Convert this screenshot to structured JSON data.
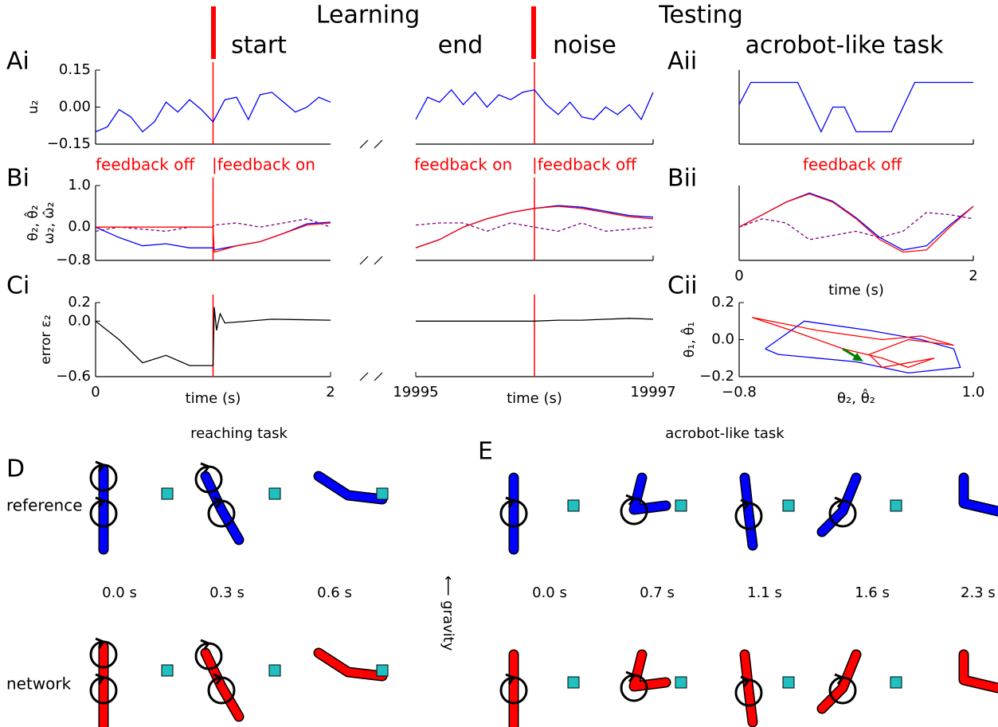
{
  "figure": {
    "headings": [
      "Learning",
      "Testing"
    ],
    "phases": [
      "start",
      "end",
      "noise",
      "acrobot-like task"
    ],
    "panels": [
      "Ai",
      "Aii",
      "Bi",
      "Bii",
      "Ci",
      "Cii",
      "D",
      "E"
    ],
    "feedback": [
      "feedback off",
      "|feedback on",
      "feedback on",
      "|feedback off",
      "feedback off"
    ],
    "reaching_title": "reaching task",
    "acrobot_title": "acrobot-like task",
    "rows": [
      "reference",
      "network"
    ],
    "reaching_times": [
      "0.0 s",
      "0.3 s",
      "0.6 s"
    ],
    "acrobot_times": [
      "0.0 s",
      "0.7 s",
      "1.1 s",
      "1.6 s",
      "2.3 s"
    ],
    "gravity": "⟵ gravity"
  },
  "chart_data": [
    {
      "type": "line",
      "ylabel": [
        "u₂"
      ],
      "xlim": [
        0,
        2
      ],
      "ylim": [
        -0.15,
        0.15
      ],
      "yticks": [
        0.15,
        {
          "value": 0,
          "label": "0.00"
        },
        {
          "value": -0.15,
          "label": "−0.15"
        }
      ],
      "vlines": [
        1
      ],
      "x": [
        0,
        0.1,
        0.2,
        0.3,
        0.4,
        0.5,
        0.6,
        0.7,
        0.8,
        0.9,
        1.0,
        1.1,
        1.2,
        1.3,
        1.4,
        1.5,
        1.6,
        1.7,
        1.8,
        1.9,
        2.0
      ],
      "series": [
        {
          "color": "#0000ff",
          "values": [
            -0.1,
            -0.08,
            -0.01,
            -0.04,
            -0.1,
            -0.06,
            0.02,
            -0.02,
            0.03,
            -0.01,
            -0.06,
            0.03,
            0.04,
            -0.05,
            0.05,
            0.06,
            0.02,
            -0.02,
            0.0,
            0.04,
            0.02
          ]
        }
      ]
    },
    {
      "type": "line",
      "xlim": [
        19995,
        19997
      ],
      "ylim": [
        -0.15,
        0.15
      ],
      "vlines": [
        19996
      ],
      "x": [
        19995,
        19995.1,
        19995.2,
        19995.3,
        19995.4,
        19995.5,
        19995.6,
        19995.7,
        19995.8,
        19995.9,
        19996,
        19996.1,
        19996.2,
        19996.3,
        19996.4,
        19996.5,
        19996.6,
        19996.7,
        19996.8,
        19996.9,
        19997
      ],
      "series": [
        {
          "color": "#0000ff",
          "values": [
            -0.05,
            0.04,
            0.02,
            0.07,
            0.01,
            0.06,
            0.0,
            0.05,
            0.03,
            0.06,
            0.07,
            0.01,
            -0.03,
            0.02,
            -0.04,
            -0.05,
            0.0,
            -0.03,
            0.01,
            -0.05,
            0.06
          ]
        }
      ]
    },
    {
      "type": "line",
      "xlim": [
        0,
        2
      ],
      "ylim": [
        -0.15,
        0.15
      ],
      "x": [
        0,
        0.1,
        0.5,
        0.7,
        0.8,
        0.9,
        1.0,
        1.3,
        1.5,
        2.0
      ],
      "series": [
        {
          "color": "#0000ff",
          "values": [
            0.01,
            0.1,
            0.1,
            -0.1,
            0,
            0,
            -0.1,
            -0.1,
            0.1,
            0.1
          ]
        }
      ]
    },
    {
      "type": "line",
      "ylabel": [
        "θ₂, θ̂₂",
        "ω₂, ω̂₂"
      ],
      "xlim": [
        0,
        2
      ],
      "ylim": [
        -0.8,
        1.0
      ],
      "yticks": [
        {
          "value": 1.0,
          "label": "1.0"
        },
        {
          "value": 0,
          "label": "0.0"
        },
        {
          "value": -0.8,
          "label": "−0.8"
        }
      ],
      "vlines": [
        1
      ],
      "x": [
        0,
        0.2,
        0.4,
        0.6,
        0.8,
        1.0,
        1.01,
        1.2,
        1.4,
        1.6,
        1.8,
        2.0
      ],
      "series": [
        {
          "color": "#800080",
          "style": "dashed",
          "values": [
            -0.1,
            0,
            -0.05,
            -0.1,
            0,
            0,
            0.05,
            0.1,
            0,
            0.1,
            0.2,
            0.0
          ]
        },
        {
          "color": "#0000ff",
          "values": [
            0,
            -0.25,
            -0.45,
            -0.4,
            -0.5,
            -0.5,
            -0.55,
            -0.45,
            -0.35,
            -0.15,
            0.08,
            0.12
          ]
        },
        {
          "color": "#ff0000",
          "values": [
            0,
            0,
            0,
            0,
            0,
            0,
            -0.6,
            -0.45,
            -0.35,
            -0.15,
            0.05,
            0.1
          ]
        }
      ]
    },
    {
      "type": "line",
      "xlim": [
        19995,
        19997
      ],
      "ylim": [
        -0.8,
        1.0
      ],
      "vlines": [
        19996
      ],
      "x": [
        19995,
        19995.2,
        19995.4,
        19995.6,
        19995.8,
        19996,
        19996.2,
        19996.4,
        19996.6,
        19996.8,
        19997
      ],
      "series": [
        {
          "color": "#800080",
          "style": "dashed",
          "values": [
            0.05,
            0.1,
            0.1,
            -0.1,
            0.1,
            0.0,
            -0.1,
            0.1,
            -0.1,
            -0.05,
            0.0
          ]
        },
        {
          "color": "#0000ff",
          "values": [
            -0.5,
            -0.3,
            0,
            0.2,
            0.35,
            0.45,
            0.52,
            0.48,
            0.38,
            0.28,
            0.24
          ]
        },
        {
          "color": "#ff0000",
          "values": [
            -0.5,
            -0.3,
            0,
            0.2,
            0.35,
            0.45,
            0.5,
            0.45,
            0.35,
            0.25,
            0.2
          ]
        }
      ]
    },
    {
      "type": "line",
      "xlim": [
        0,
        2
      ],
      "ylim": [
        -0.8,
        1.0
      ],
      "xticks": [
        0,
        2
      ],
      "xlabel": "time (s)",
      "x": [
        0,
        0.2,
        0.4,
        0.6,
        0.8,
        1.0,
        1.2,
        1.4,
        1.6,
        1.8,
        2.0
      ],
      "series": [
        {
          "color": "#800080",
          "style": "dashed",
          "values": [
            0,
            0.2,
            0.1,
            -0.3,
            -0.2,
            -0.1,
            -0.25,
            -0.1,
            0.35,
            0.3,
            0.2
          ]
        },
        {
          "color": "#0000ff",
          "values": [
            0,
            0.3,
            0.6,
            0.82,
            0.62,
            0.22,
            -0.25,
            -0.55,
            -0.45,
            0.05,
            0.5
          ]
        },
        {
          "color": "#ff0000",
          "values": [
            0,
            0.3,
            0.6,
            0.8,
            0.6,
            0.2,
            -0.3,
            -0.6,
            -0.55,
            0,
            0.5
          ]
        }
      ]
    },
    {
      "type": "line",
      "ylabel": [
        "error ε₂"
      ],
      "xlabel": "time (s)",
      "xlim": [
        0,
        2
      ],
      "ylim": [
        -0.6,
        0.2
      ],
      "yticks": [
        0.2,
        {
          "value": 0,
          "label": "0.0"
        },
        {
          "value": -0.6,
          "label": "−0.6"
        }
      ],
      "xticks": [
        0,
        2
      ],
      "vlines": [
        1
      ],
      "x": [
        0,
        0.2,
        0.4,
        0.6,
        0.8,
        1.0,
        1.01,
        1.03,
        1.06,
        1.1,
        1.5,
        2.0
      ],
      "series": [
        {
          "color": "#000000",
          "values": [
            0,
            -0.2,
            -0.45,
            -0.37,
            -0.48,
            -0.48,
            0.15,
            -0.1,
            0.08,
            -0.02,
            0.02,
            0.01
          ]
        }
      ]
    },
    {
      "type": "line",
      "xlabel": "time (s)",
      "xlim": [
        19995,
        19997
      ],
      "ylim": [
        -0.6,
        0.2
      ],
      "xticks": [
        19995,
        19997
      ],
      "vlines": [
        19996
      ],
      "x": [
        19995,
        19995.2,
        19995.4,
        19995.6,
        19995.8,
        19996,
        19996.2,
        19996.4,
        19996.6,
        19996.8,
        19997
      ],
      "series": [
        {
          "color": "#000000",
          "values": [
            0,
            0,
            0,
            0,
            0,
            0,
            0.01,
            0.01,
            0.02,
            0.03,
            0.02
          ]
        }
      ]
    },
    {
      "type": "line",
      "ylabel": [
        "θ₁, θ̂₁"
      ],
      "xlabel": "θ₂, θ̂₂",
      "xlim": [
        -0.8,
        1.0
      ],
      "ylim": [
        -0.2,
        0.2
      ],
      "yticks": [
        0.2,
        {
          "value": 0,
          "label": "0.0"
        },
        {
          "value": -0.2,
          "label": "−0.2"
        }
      ],
      "xticks": [
        {
          "value": -0.8,
          "label": "−0.8"
        },
        {
          "value": 1.0,
          "label": "1.0"
        }
      ],
      "series": [
        {
          "color": "#0000ff",
          "x": [
            -0.6,
            -0.3,
            0.2,
            0.6,
            0.85,
            0.9,
            0.5,
            0.1,
            -0.5,
            -0.6
          ],
          "values": [
            -0.05,
            0.1,
            0.05,
            0.0,
            -0.05,
            -0.15,
            -0.18,
            -0.12,
            -0.08,
            -0.05
          ]
        },
        {
          "color": "#ff0000",
          "x": [
            -0.7,
            -0.4,
            0,
            0.3,
            0.5,
            0.7,
            0.3,
            0.2,
            0.5,
            0.85,
            0.6,
            0.3,
            -0.2,
            -0.7
          ],
          "values": [
            0.12,
            0.05,
            -0.05,
            -0.1,
            -0.15,
            -0.1,
            -0.15,
            -0.08,
            0.0,
            -0.03,
            0.02,
            0.0,
            0.05,
            0.12
          ]
        }
      ]
    }
  ]
}
